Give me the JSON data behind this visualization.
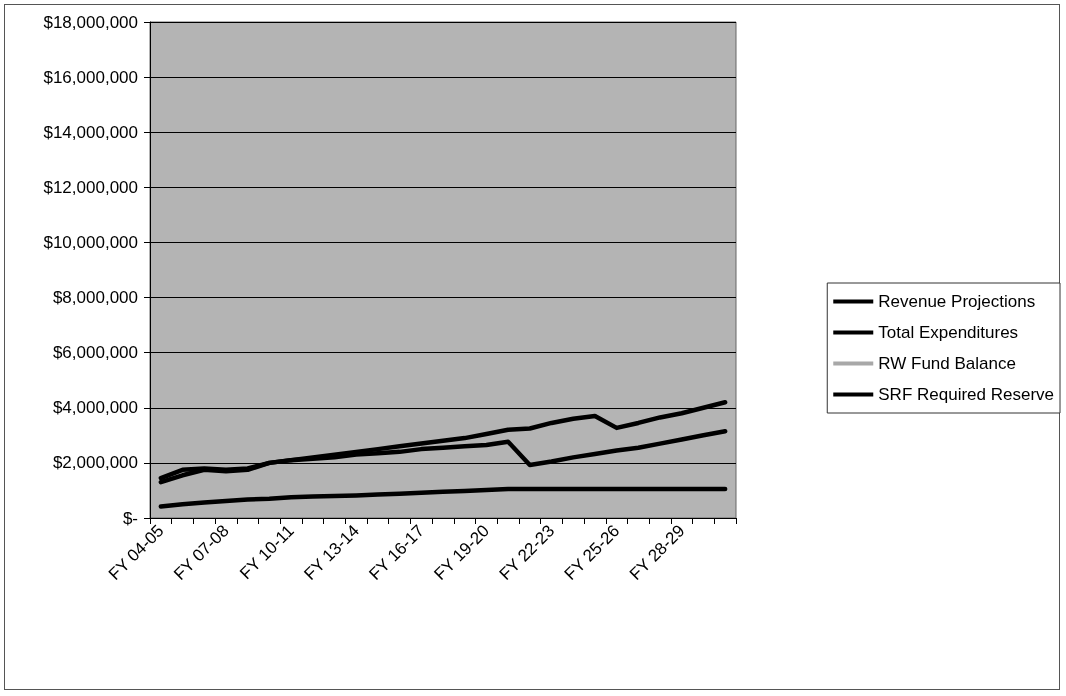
{
  "chart_data": {
    "type": "line",
    "categories": [
      "FY 04-05",
      null,
      null,
      "FY 07-08",
      null,
      null,
      "FY 10-11",
      null,
      null,
      "FY 13-14",
      null,
      null,
      "FY 16-17",
      null,
      null,
      "FY 19-20",
      null,
      null,
      "FY 22-23",
      null,
      null,
      "FY 25-26",
      null,
      null,
      "FY 28-29",
      null,
      null
    ],
    "series": [
      {
        "name": "Revenue Projections",
        "color": "#000000",
        "values": [
          1450000,
          1750000,
          1800000,
          1750000,
          1800000,
          2000000,
          2100000,
          2200000,
          2300000,
          2400000,
          2500000,
          2600000,
          2700000,
          2800000,
          2900000,
          3050000,
          3200000,
          3250000,
          3450000,
          3600000,
          3700000,
          3270000,
          3450000,
          3650000,
          3800000,
          4000000,
          4200000
        ]
      },
      {
        "name": "Total Expenditures",
        "color": "#000000",
        "values": [
          1300000,
          1550000,
          1750000,
          1700000,
          1750000,
          2000000,
          2100000,
          2150000,
          2200000,
          2300000,
          2350000,
          2400000,
          2500000,
          2550000,
          2600000,
          2650000,
          2770000,
          1920000,
          2050000,
          2200000,
          2320000,
          2450000,
          2550000,
          2700000,
          2850000,
          3000000,
          3150000
        ]
      },
      {
        "name": "RW Fund Balance",
        "color": "#a8a8a8",
        "values": [
          null,
          null,
          null,
          null,
          null,
          null,
          null,
          null,
          null,
          null,
          null,
          null,
          null,
          null,
          null,
          null,
          null,
          null,
          null,
          null,
          null,
          null,
          null,
          null,
          null,
          null,
          null
        ]
      },
      {
        "name": "SRF Required Reserve",
        "color": "#000000",
        "values": [
          420000,
          500000,
          560000,
          620000,
          670000,
          700000,
          750000,
          780000,
          800000,
          820000,
          850000,
          880000,
          920000,
          950000,
          980000,
          1020000,
          1050000,
          1050000,
          1050000,
          1050000,
          1050000,
          1050000,
          1050000,
          1050000,
          1050000,
          1050000,
          1050000
        ]
      }
    ],
    "ylim": [
      0,
      18000000
    ],
    "yticks": [
      {
        "value": 0,
        "label": "$-"
      },
      {
        "value": 2000000,
        "label": "$2,000,000"
      },
      {
        "value": 4000000,
        "label": "$4,000,000"
      },
      {
        "value": 6000000,
        "label": "$6,000,000"
      },
      {
        "value": 8000000,
        "label": "$8,000,000"
      },
      {
        "value": 10000000,
        "label": "$10,000,000"
      },
      {
        "value": 12000000,
        "label": "$12,000,000"
      },
      {
        "value": 14000000,
        "label": "$14,000,000"
      },
      {
        "value": 16000000,
        "label": "$16,000,000"
      },
      {
        "value": 18000000,
        "label": "$18,000,000"
      }
    ],
    "grid": "y",
    "legend": "right",
    "marker": "none",
    "line_style": "solid"
  }
}
